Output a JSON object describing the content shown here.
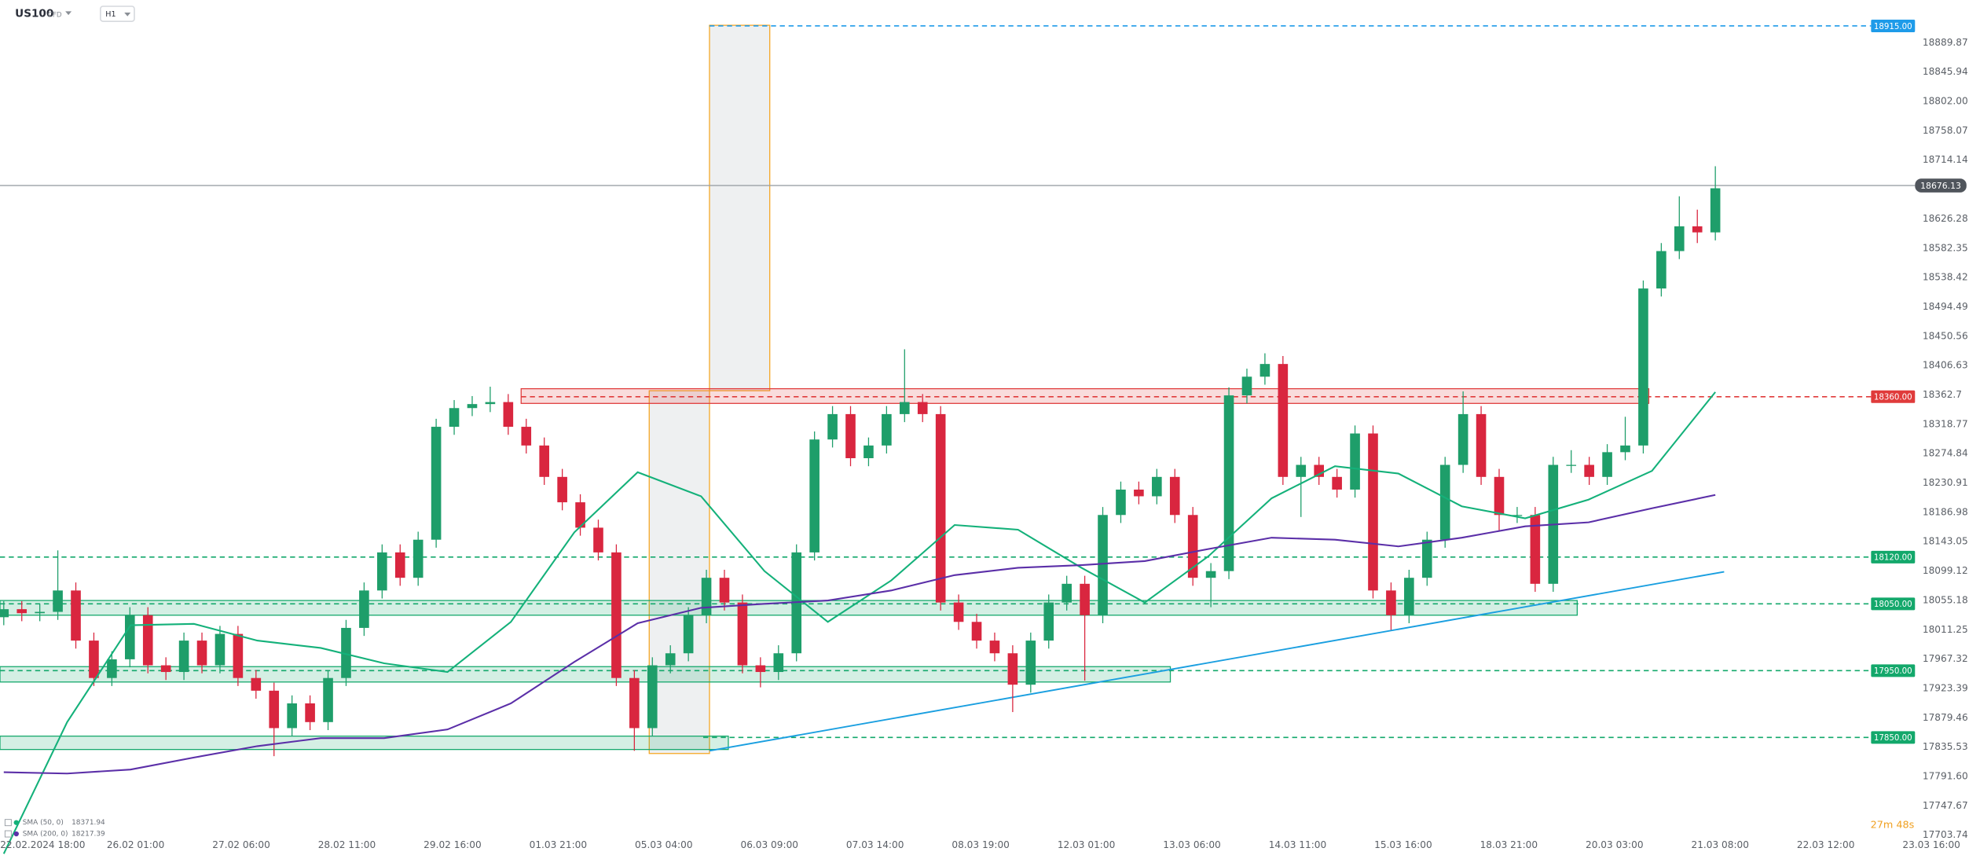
{
  "chart_data": {
    "type": "candlestick",
    "symbol": "US100",
    "instrument_type": "CFD",
    "timeframe": "H1",
    "countdown": "27m 48s",
    "x_labels": [
      "22.02.2024 18:00",
      "26.02 01:00",
      "27.02 06:00",
      "28.02 11:00",
      "29.02 16:00",
      "01.03 21:00",
      "05.03 04:00",
      "06.03 09:00",
      "07.03 14:00",
      "08.03 19:00",
      "12.03 01:00",
      "13.03 06:00",
      "14.03 11:00",
      "15.03 16:00",
      "18.03 21:00",
      "20.03 03:00",
      "21.03 08:00",
      "22.03 12:00",
      "23.03 16:00"
    ],
    "ylim": [
      17713.2,
      18953.8
    ],
    "yticks": [
      18889.87,
      18845.94,
      {
        "value": 18802.0,
        "label": "18802.00"
      },
      18758.07,
      18714.14,
      18626.28,
      18582.35,
      18538.42,
      18494.49,
      18450.56,
      18406.63,
      18362.7,
      18318.77,
      18274.84,
      18230.91,
      18186.98,
      18143.05,
      18099.12,
      18055.18,
      18011.25,
      17967.32,
      17923.39,
      17879.46,
      17835.53,
      {
        "value": 17791.6,
        "label": "17791.60"
      },
      17747.67,
      17703.74
    ],
    "up_color": "#1e9e6a",
    "down_color": "#d9263f",
    "candles": {
      "open": [
        18030,
        18042,
        18036,
        18038,
        18070,
        17995,
        17939,
        17967,
        18033,
        17958,
        17948,
        17995,
        17958,
        18005,
        17939,
        17920,
        17864,
        17901,
        17873,
        17939,
        18014,
        18070,
        18127,
        18089,
        18146,
        18315,
        18343,
        18349,
        18352,
        18315,
        18287,
        18240,
        18202,
        18164,
        18127,
        17939,
        17864,
        17958,
        17976,
        18033,
        18089,
        18052,
        17958,
        17948,
        17976,
        18127,
        18296,
        18334,
        18268,
        18287,
        18334,
        18352,
        18334,
        18052,
        18023,
        17995,
        17976,
        17929,
        17995,
        18052,
        18080,
        18033,
        18183,
        18221,
        18211,
        18240,
        18183,
        18089,
        18099,
        18362,
        18390,
        18409,
        18240,
        18258,
        18240,
        18221,
        18305,
        18070,
        18033,
        18089,
        18146,
        18258,
        18334,
        18240,
        18183,
        18183,
        18080,
        18258,
        18258,
        18240,
        18277,
        18287,
        18522,
        18578,
        18615,
        18606
      ],
      "high": [
        18054,
        18054,
        18050,
        18130,
        18082,
        18007,
        17979,
        18045,
        18045,
        17970,
        18007,
        18007,
        18017,
        18017,
        17951,
        17932,
        17913,
        17913,
        17951,
        18026,
        18082,
        18139,
        18139,
        18158,
        18327,
        18355,
        18361,
        18375,
        18364,
        18327,
        18299,
        18252,
        18214,
        18176,
        18139,
        17951,
        17970,
        17988,
        18045,
        18101,
        18101,
        18064,
        17970,
        17988,
        18139,
        18308,
        18346,
        18346,
        18299,
        18346,
        18431,
        18364,
        18346,
        18064,
        18035,
        18007,
        17988,
        18007,
        18064,
        18092,
        18092,
        18195,
        18233,
        18233,
        18252,
        18252,
        18195,
        18111,
        18374,
        18402,
        18425,
        18421,
        18270,
        18270,
        18252,
        18317,
        18317,
        18082,
        18101,
        18158,
        18270,
        18368,
        18346,
        18252,
        18195,
        18195,
        18270,
        18280,
        18270,
        18289,
        18330,
        18534,
        18590,
        18660,
        18640,
        18705
      ],
      "low": [
        18018,
        18024,
        18024,
        18026,
        17983,
        17927,
        17927,
        17955,
        17946,
        17936,
        17936,
        17946,
        17946,
        17927,
        17908,
        17822,
        17852,
        17861,
        17861,
        17927,
        18002,
        18058,
        18077,
        18077,
        18134,
        18303,
        18331,
        18337,
        18303,
        18275,
        18228,
        18190,
        18152,
        18115,
        17927,
        17830,
        17852,
        17946,
        17964,
        18021,
        18040,
        17946,
        17925,
        17936,
        17964,
        18115,
        18284,
        18256,
        18256,
        18275,
        18322,
        18322,
        18040,
        18011,
        17983,
        17964,
        17888,
        17917,
        17983,
        18040,
        17935,
        18021,
        18171,
        18199,
        18199,
        18171,
        18077,
        18045,
        18087,
        18350,
        18378,
        18228,
        18180,
        18228,
        18209,
        18209,
        18058,
        18011,
        18021,
        18077,
        18134,
        18246,
        18228,
        18160,
        18171,
        18068,
        18068,
        18246,
        18228,
        18228,
        18265,
        18275,
        18510,
        18566,
        18590,
        18594
      ],
      "close": [
        18042,
        18036,
        18038,
        18070,
        17995,
        17939,
        17967,
        18033,
        17958,
        17948,
        17995,
        17958,
        18005,
        17939,
        17920,
        17864,
        17901,
        17873,
        17939,
        18014,
        18070,
        18127,
        18089,
        18146,
        18315,
        18343,
        18349,
        18352,
        18315,
        18287,
        18240,
        18202,
        18164,
        18127,
        17939,
        17864,
        17958,
        17976,
        18033,
        18089,
        18052,
        17958,
        17948,
        17976,
        18127,
        18296,
        18334,
        18268,
        18287,
        18334,
        18352,
        18334,
        18052,
        18023,
        17995,
        17976,
        17929,
        17995,
        18052,
        18080,
        18033,
        18183,
        18221,
        18211,
        18240,
        18183,
        18089,
        18099,
        18362,
        18390,
        18409,
        18240,
        18258,
        18240,
        18221,
        18305,
        18070,
        18033,
        18089,
        18146,
        18258,
        18334,
        18240,
        18183,
        18183,
        18080,
        18258,
        18258,
        18240,
        18277,
        18287,
        18522,
        18578,
        18615,
        18606,
        18672
      ]
    },
    "series": [
      {
        "name": "SMA (50, 0)",
        "color": "#14b17a",
        "last_value": 18371.94,
        "values": [
          17676,
          17873,
          18018,
          18020,
          17995,
          17984,
          17961,
          17948,
          18023,
          18157,
          18247,
          18211,
          18099,
          18023,
          18085,
          18168,
          18161,
          18104,
          18052,
          18121,
          18208,
          18256,
          18245,
          18196,
          18178,
          18206,
          18249,
          18367
        ]
      },
      {
        "name": "SMA (200, 0)",
        "color": "#5b2fa8",
        "last_value": 18217.39,
        "values": [
          17798,
          17796,
          17802,
          17820,
          17837,
          17849,
          17849,
          17862,
          17901,
          17963,
          18021,
          18044,
          18050,
          18055,
          18070,
          18093,
          18104,
          18108,
          18114,
          18132,
          18149,
          18146,
          18136,
          18149,
          18166,
          18172,
          18193,
          18213
        ]
      }
    ],
    "current_price": {
      "value": 18676.13,
      "color": "#9aa0a6"
    },
    "levels": [
      {
        "value": 18915,
        "label": "18915.00",
        "color": "#1e9be9"
      },
      {
        "value": 18360,
        "label": "18360.00",
        "color": "#e03b3b"
      },
      {
        "value": 18120,
        "label": "18120.00",
        "color": "#13a86b"
      },
      {
        "value": 18050,
        "label": "18050.00",
        "color": "#13a86b"
      },
      {
        "value": 17950,
        "label": "17950.00",
        "color": "#13a86b"
      },
      {
        "value": 17850,
        "label": "17850.00",
        "color": "#13a86b"
      }
    ],
    "zones": [
      {
        "low": 18350,
        "high": 18372,
        "color": "#e03b3b"
      },
      {
        "low": 18033,
        "high": 18055,
        "color": "#13a86b"
      },
      {
        "low": 17933,
        "high": 17956,
        "color": "#13a86b"
      },
      {
        "low": 17832,
        "high": 17852,
        "color": "#13a86b"
      }
    ],
    "measure_box": {
      "low": 17826,
      "mid": 18369,
      "high": 18916
    },
    "trendline": {
      "start": 17830,
      "end": 18098,
      "color": "#1a9fe0"
    }
  }
}
